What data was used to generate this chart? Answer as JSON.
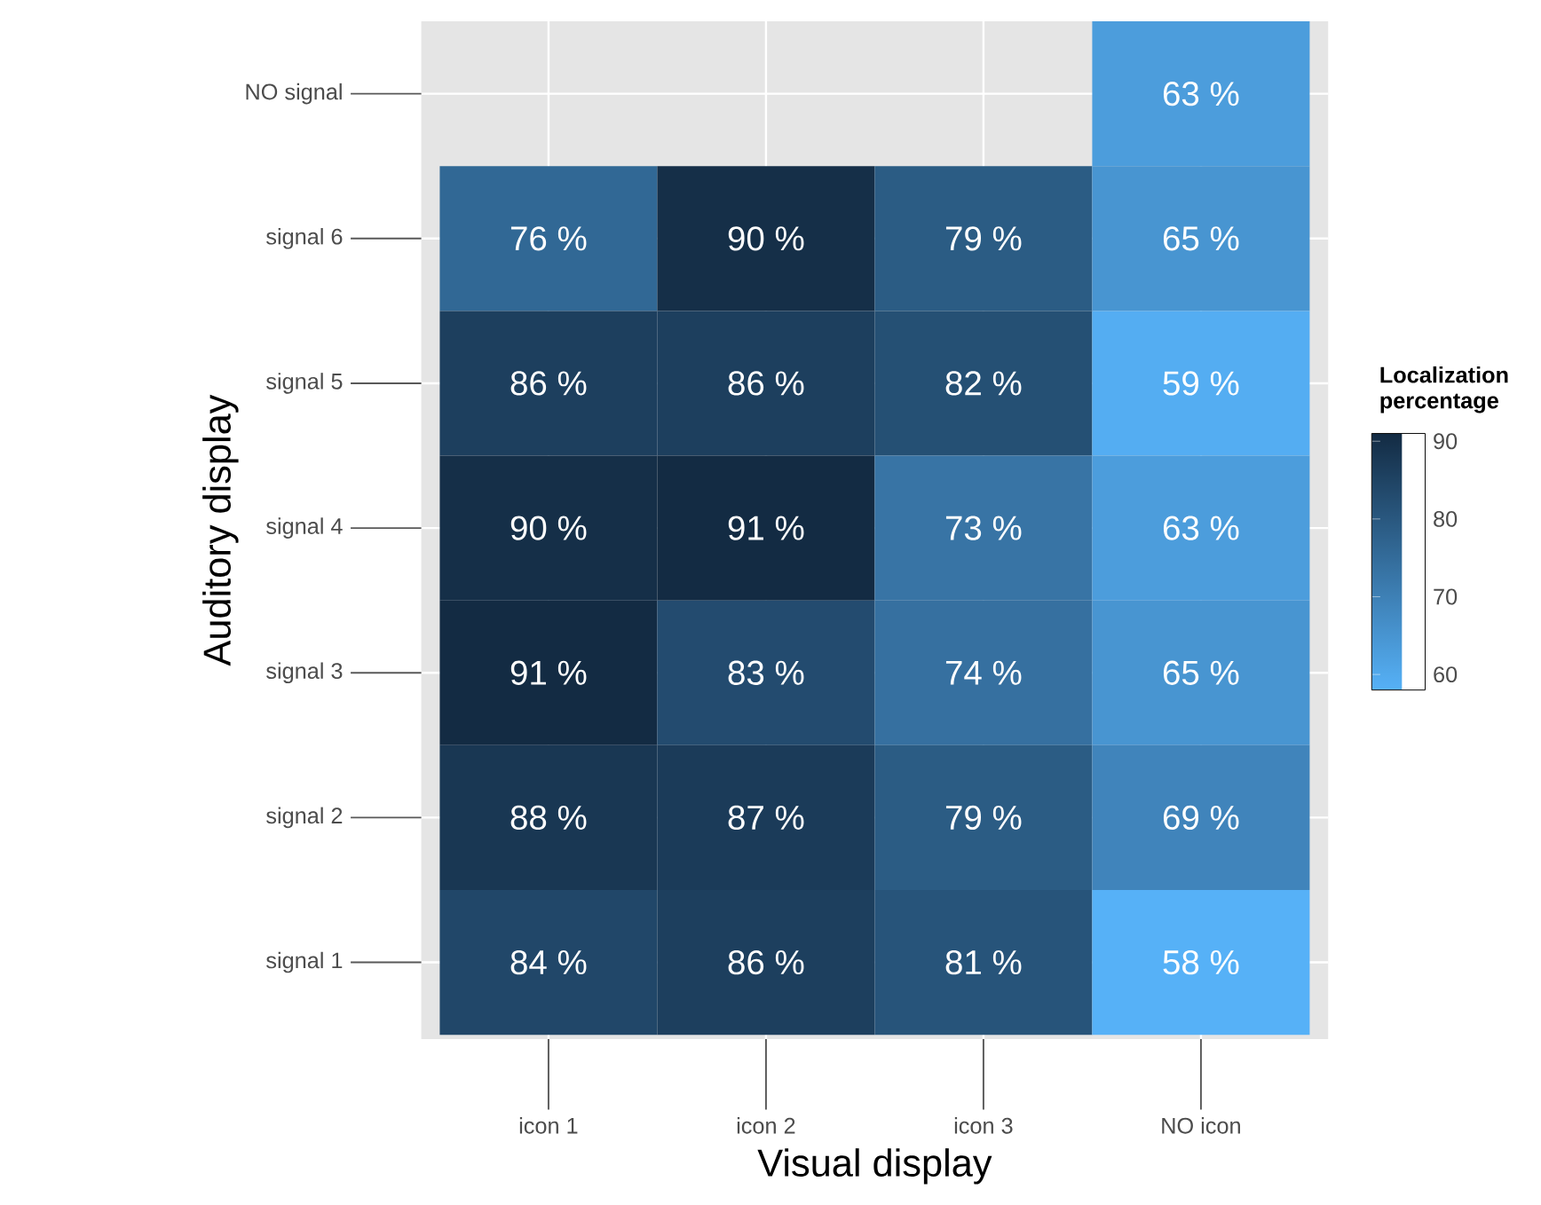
{
  "chart_data": {
    "type": "heatmap",
    "xlabel": "Visual display",
    "ylabel": "Auditory display",
    "clabel": "Localization percentage",
    "categories": [
      "icon 1",
      "icon 2",
      "icon 3",
      "NO icon"
    ],
    "y_categories": [
      "NO signal",
      "signal 6",
      "signal 5",
      "signal 4",
      "signal 3",
      "signal 2",
      "signal 1"
    ],
    "cells": [
      [
        null,
        null,
        null,
        63
      ],
      [
        76,
        90,
        79,
        65
      ],
      [
        86,
        86,
        82,
        59
      ],
      [
        90,
        91,
        73,
        63
      ],
      [
        91,
        83,
        74,
        65
      ],
      [
        88,
        87,
        79,
        69
      ],
      [
        84,
        86,
        81,
        58
      ]
    ],
    "cell_labels": [
      [
        null,
        null,
        null,
        "63 %"
      ],
      [
        "76 %",
        "90 %",
        "79 %",
        "65 %"
      ],
      [
        "86 %",
        "86 %",
        "82 %",
        "59 %"
      ],
      [
        "90 %",
        "91 %",
        "73 %",
        "63 %"
      ],
      [
        "91 %",
        "83 %",
        "74 %",
        "65 %"
      ],
      [
        "88 %",
        "87 %",
        "79 %",
        "69 %"
      ],
      [
        "84 %",
        "86 %",
        "81 %",
        "58 %"
      ]
    ],
    "clim": [
      58,
      91
    ],
    "cticks": [
      60,
      70,
      80,
      90
    ],
    "colors": [
      "#56b1f7",
      "#132b43"
    ],
    "grid": true
  }
}
